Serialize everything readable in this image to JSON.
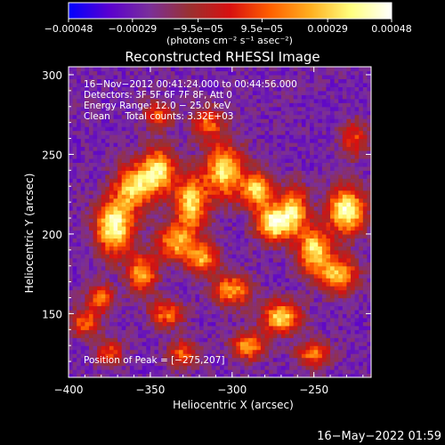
{
  "chart_data": {
    "type": "heatmap",
    "title": "Reconstructed RHESSI Image",
    "xlabel": "Heliocentric X (arcsec)",
    "ylabel": "Heliocentric Y (arcsec)",
    "xlim": [
      -400,
      -215
    ],
    "ylim": [
      110,
      305
    ],
    "x_ticks": [
      -400,
      -350,
      -300,
      -250
    ],
    "y_ticks": [
      150,
      200,
      250,
      300
    ],
    "x_tick_labels": [
      "−400",
      "−350",
      "−300",
      "−250"
    ],
    "y_tick_labels": [
      "150",
      "200",
      "250",
      "300"
    ],
    "colorbar": {
      "range": [
        -0.00048,
        0.00048
      ],
      "ticks": [
        -0.00048,
        -0.00029,
        -9.5e-05,
        9.5e-05,
        0.00029,
        0.00048
      ],
      "tick_labels": [
        "−0.00048",
        "−0.00029",
        "−9.5e−05",
        "9.5e−05",
        "0.00029",
        "0.00048"
      ],
      "unit_label": "(photons cm⁻² s⁻¹ asec⁻²)",
      "colormap": [
        "#0000ff",
        "#5a00d0",
        "#7a2f9a",
        "#9a3030",
        "#d81010",
        "#ff6000",
        "#ffb020",
        "#ffff80",
        "#ffffff"
      ]
    },
    "annotations": [
      "16−Nov−2012 00:41:24.000 to 00:44:56.000",
      "Detectors: 3F 5F 6F 7F 8F, Att 0",
      "Energy Range: 12.0 − 25.0 keV",
      "Clean     Total counts: 3.32E+03"
    ],
    "peak_label": "Position of Peak = [−275,207]",
    "peak": [
      -275,
      207
    ],
    "sources": [
      {
        "x": -372,
        "y": 205,
        "amp": 1.0,
        "sx": 8,
        "sy": 12
      },
      {
        "x": -360,
        "y": 230,
        "amp": 0.8,
        "sx": 8,
        "sy": 10
      },
      {
        "x": -345,
        "y": 240,
        "amp": 0.85,
        "sx": 7,
        "sy": 10
      },
      {
        "x": -335,
        "y": 195,
        "amp": 0.7,
        "sx": 8,
        "sy": 8
      },
      {
        "x": -325,
        "y": 220,
        "amp": 0.85,
        "sx": 7,
        "sy": 12
      },
      {
        "x": -318,
        "y": 185,
        "amp": 0.7,
        "sx": 7,
        "sy": 7
      },
      {
        "x": -305,
        "y": 240,
        "amp": 0.85,
        "sx": 8,
        "sy": 12
      },
      {
        "x": -300,
        "y": 165,
        "amp": 0.7,
        "sx": 8,
        "sy": 7
      },
      {
        "x": -285,
        "y": 228,
        "amp": 0.8,
        "sx": 7,
        "sy": 8
      },
      {
        "x": -275,
        "y": 207,
        "amp": 1.0,
        "sx": 7,
        "sy": 8
      },
      {
        "x": -262,
        "y": 215,
        "amp": 0.8,
        "sx": 6,
        "sy": 10
      },
      {
        "x": -250,
        "y": 190,
        "amp": 0.85,
        "sx": 7,
        "sy": 10
      },
      {
        "x": -230,
        "y": 215,
        "amp": 1.0,
        "sx": 8,
        "sy": 10
      },
      {
        "x": -235,
        "y": 175,
        "amp": 0.75,
        "sx": 8,
        "sy": 8
      },
      {
        "x": -270,
        "y": 148,
        "amp": 0.85,
        "sx": 8,
        "sy": 7
      },
      {
        "x": -290,
        "y": 130,
        "amp": 0.7,
        "sx": 7,
        "sy": 6
      },
      {
        "x": -355,
        "y": 175,
        "amp": 0.75,
        "sx": 6,
        "sy": 8
      },
      {
        "x": -380,
        "y": 160,
        "amp": 0.6,
        "sx": 6,
        "sy": 6
      },
      {
        "x": -390,
        "y": 145,
        "amp": 0.55,
        "sx": 6,
        "sy": 6
      },
      {
        "x": -340,
        "y": 150,
        "amp": 0.6,
        "sx": 7,
        "sy": 6
      },
      {
        "x": -315,
        "y": 270,
        "amp": 0.55,
        "sx": 7,
        "sy": 7
      },
      {
        "x": -345,
        "y": 275,
        "amp": 0.5,
        "sx": 6,
        "sy": 6
      },
      {
        "x": -330,
        "y": 125,
        "amp": 0.55,
        "sx": 6,
        "sy": 6
      },
      {
        "x": -250,
        "y": 125,
        "amp": 0.6,
        "sx": 7,
        "sy": 6
      },
      {
        "x": -225,
        "y": 260,
        "amp": 0.45,
        "sx": 6,
        "sy": 8
      },
      {
        "x": -375,
        "y": 125,
        "amp": 0.5,
        "sx": 6,
        "sy": 6
      }
    ]
  },
  "footer": {
    "timestamp": "16−May−2022 01:59"
  }
}
